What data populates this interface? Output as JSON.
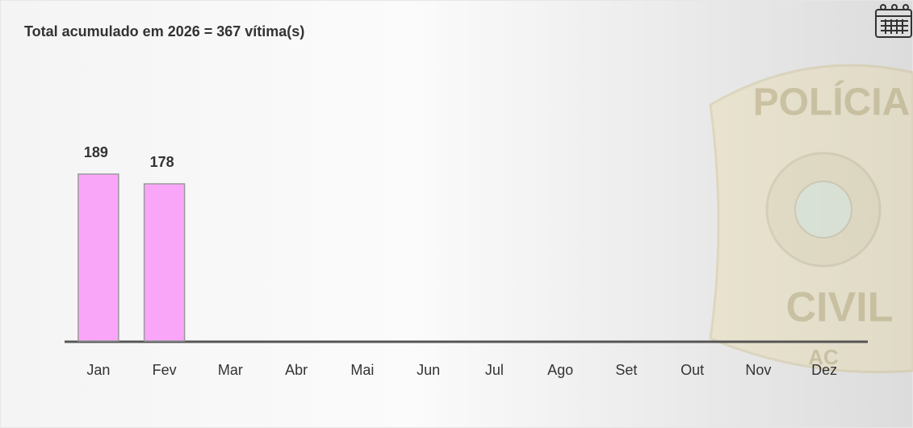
{
  "chart_data": {
    "type": "bar",
    "title": "Total acumulado em 2026 = 367 vítima(s)",
    "categories": [
      "Jan",
      "Fev",
      "Mar",
      "Abr",
      "Mai",
      "Jun",
      "Jul",
      "Ago",
      "Set",
      "Out",
      "Nov",
      "Dez"
    ],
    "values": [
      189,
      178,
      null,
      null,
      null,
      null,
      null,
      null,
      null,
      null,
      null,
      null
    ],
    "color": "#f9a6f9"
  },
  "watermark": {
    "lines": [
      "POLÍCIA",
      "CIVIL",
      "AC"
    ]
  }
}
